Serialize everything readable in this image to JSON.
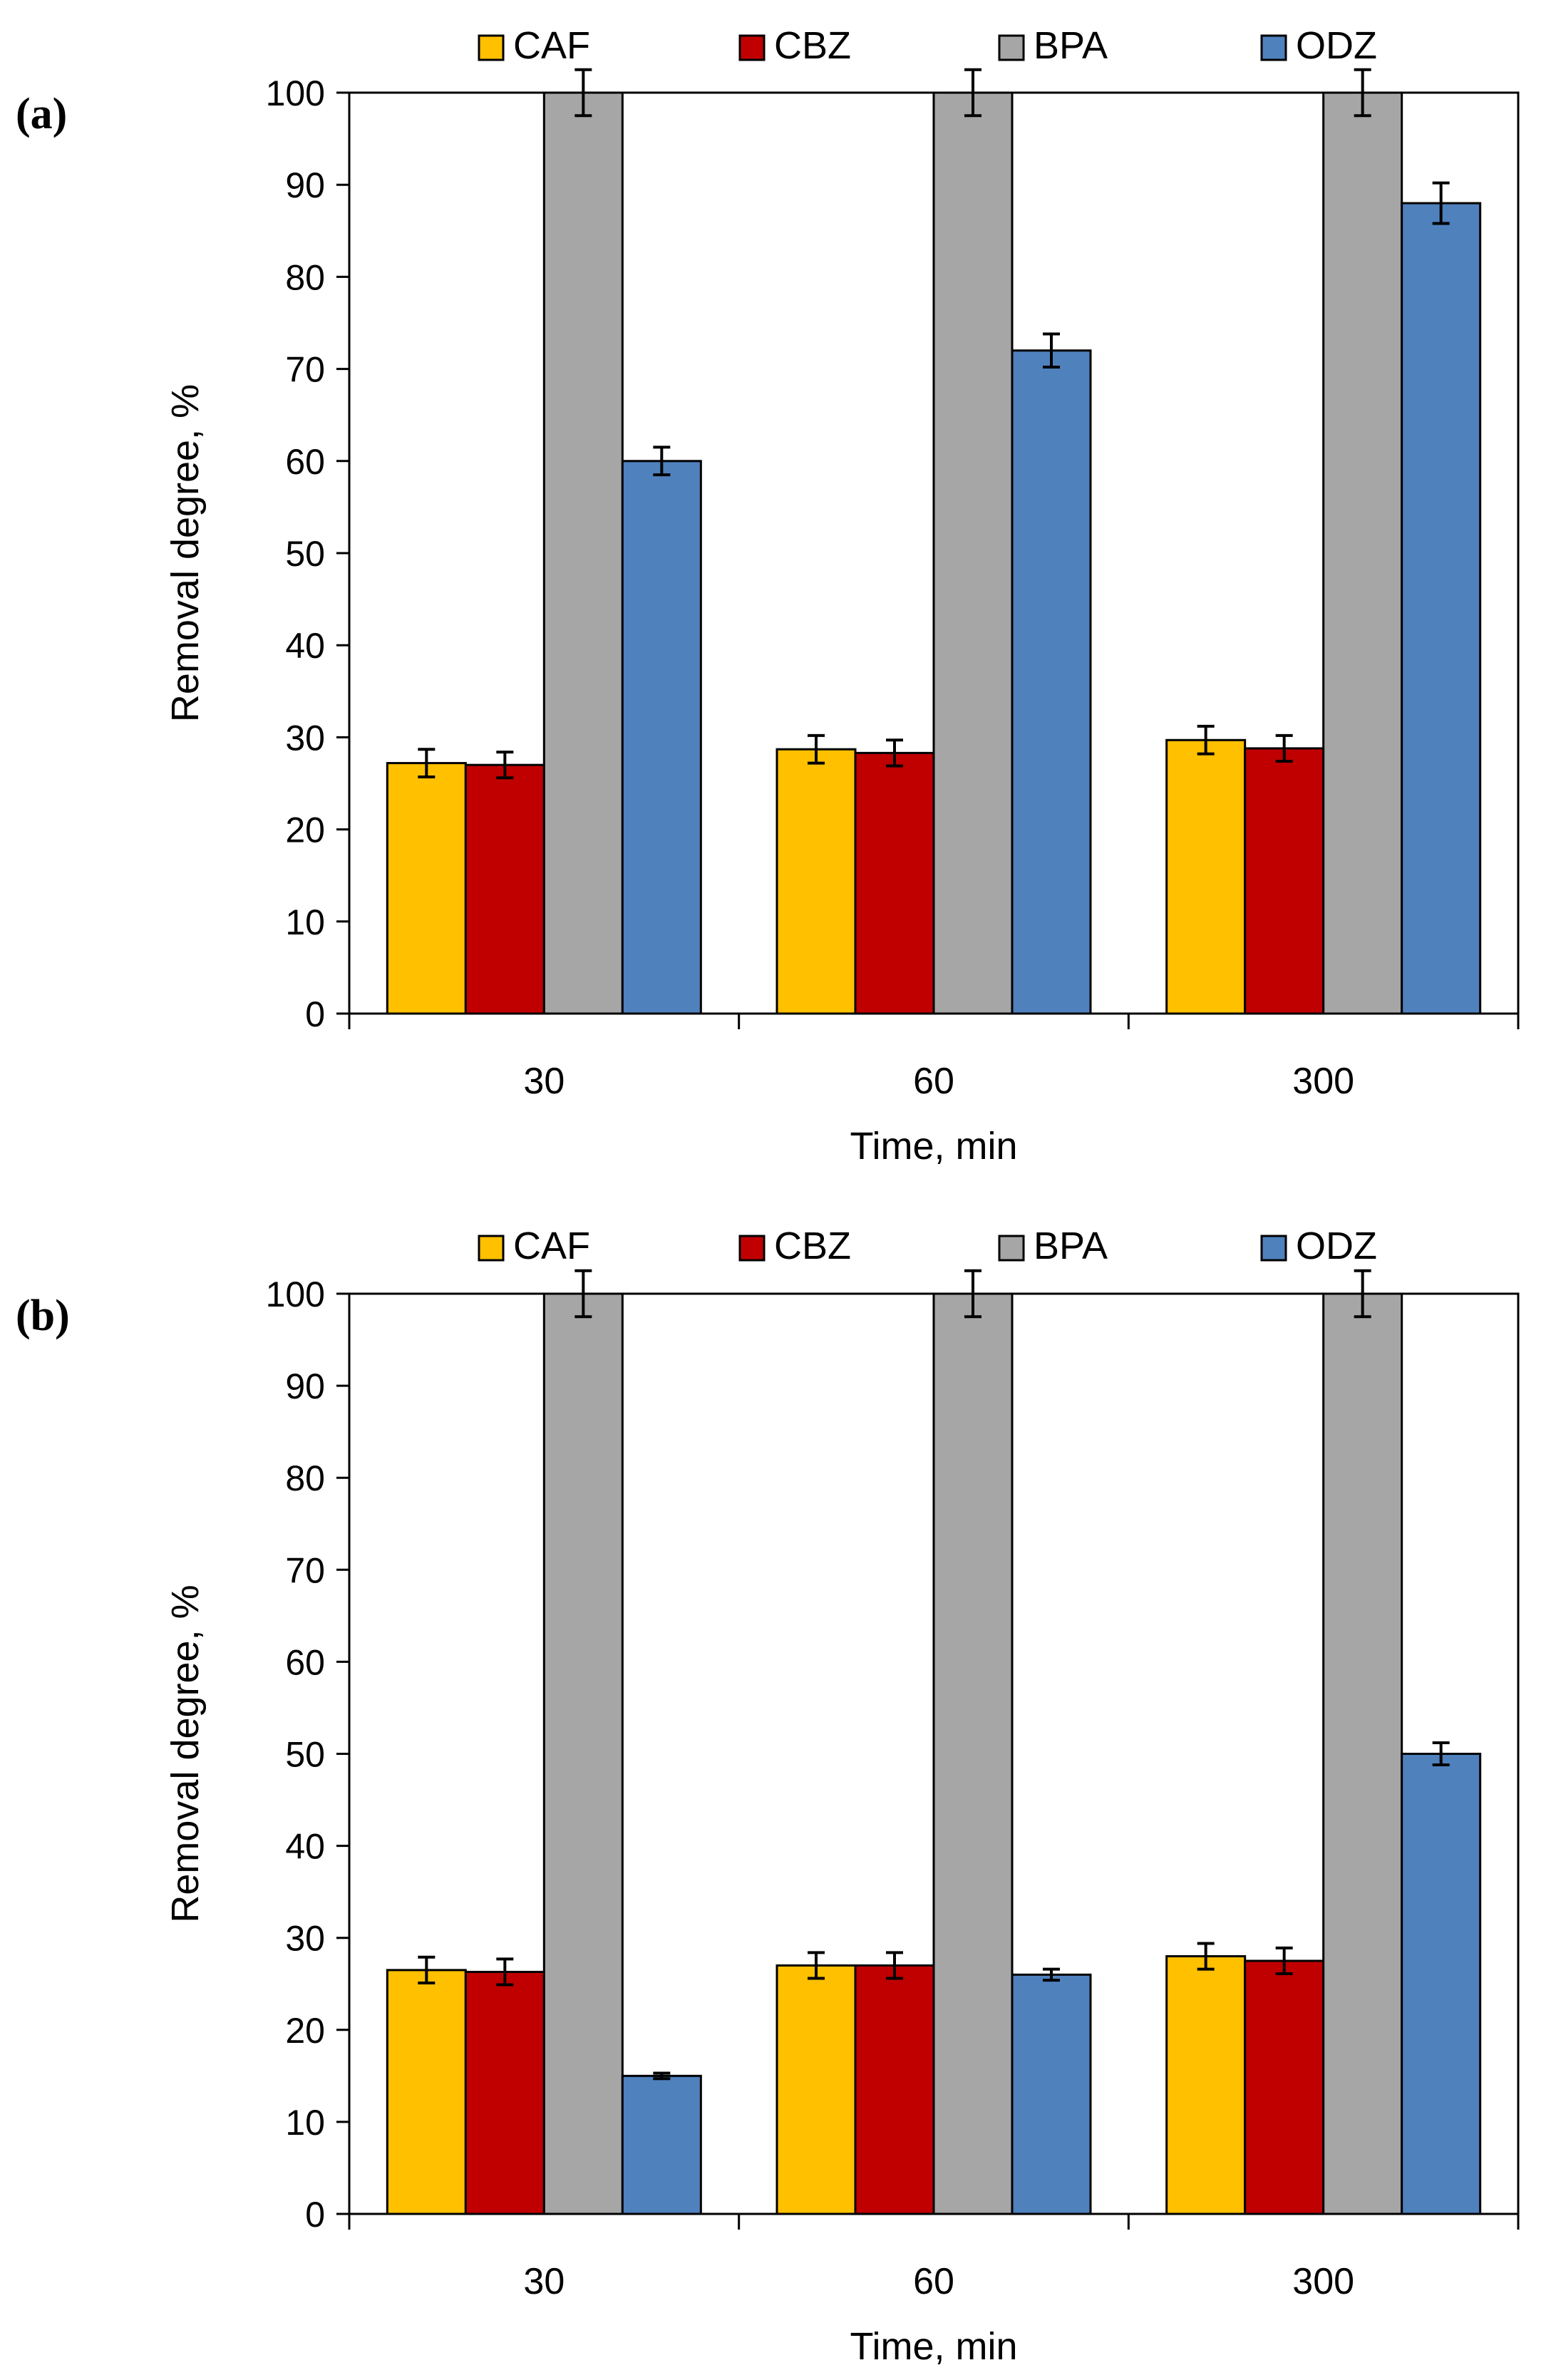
{
  "chart_data": [
    {
      "type": "bar",
      "panel_label": "(a)",
      "categories": [
        "30",
        "60",
        "300"
      ],
      "series": [
        {
          "name": "CAF",
          "color": "#FFC000",
          "values": [
            27.2,
            28.7,
            29.7
          ],
          "errors": [
            1.5,
            1.5,
            1.5
          ]
        },
        {
          "name": "CBZ",
          "color": "#C00000",
          "values": [
            27.0,
            28.3,
            28.8
          ],
          "errors": [
            1.4,
            1.4,
            1.4
          ]
        },
        {
          "name": "BPA",
          "color": "#A6A6A6",
          "values": [
            100,
            100,
            100
          ],
          "errors": [
            2.5,
            2.5,
            2.5
          ]
        },
        {
          "name": "ODZ",
          "color": "#4F81BD",
          "values": [
            60,
            72,
            88
          ],
          "errors": [
            1.5,
            1.8,
            2.2
          ]
        }
      ],
      "xlabel": "Time, min",
      "ylabel": "Removal degree, %",
      "ylim": [
        0,
        100
      ],
      "yticks": [
        "0",
        "10",
        "20",
        "30",
        "40",
        "50",
        "60",
        "70",
        "80",
        "90",
        "100"
      ],
      "legend_position": "top-center"
    },
    {
      "type": "bar",
      "panel_label": "(b)",
      "categories": [
        "30",
        "60",
        "300"
      ],
      "series": [
        {
          "name": "CAF",
          "color": "#FFC000",
          "values": [
            26.5,
            27.0,
            28.0
          ],
          "errors": [
            1.4,
            1.4,
            1.4
          ]
        },
        {
          "name": "CBZ",
          "color": "#C00000",
          "values": [
            26.3,
            27.0,
            27.5
          ],
          "errors": [
            1.4,
            1.4,
            1.4
          ]
        },
        {
          "name": "BPA",
          "color": "#A6A6A6",
          "values": [
            100,
            100,
            100
          ],
          "errors": [
            2.5,
            2.5,
            2.5
          ]
        },
        {
          "name": "ODZ",
          "color": "#4F81BD",
          "values": [
            15,
            26,
            50
          ],
          "errors": [
            0.3,
            0.6,
            1.2
          ]
        }
      ],
      "xlabel": "Time, min",
      "ylabel": "Removal degree, %",
      "ylim": [
        0,
        100
      ],
      "yticks": [
        "0",
        "10",
        "20",
        "30",
        "40",
        "50",
        "60",
        "70",
        "80",
        "90",
        "100"
      ],
      "legend_position": "top-center"
    }
  ]
}
